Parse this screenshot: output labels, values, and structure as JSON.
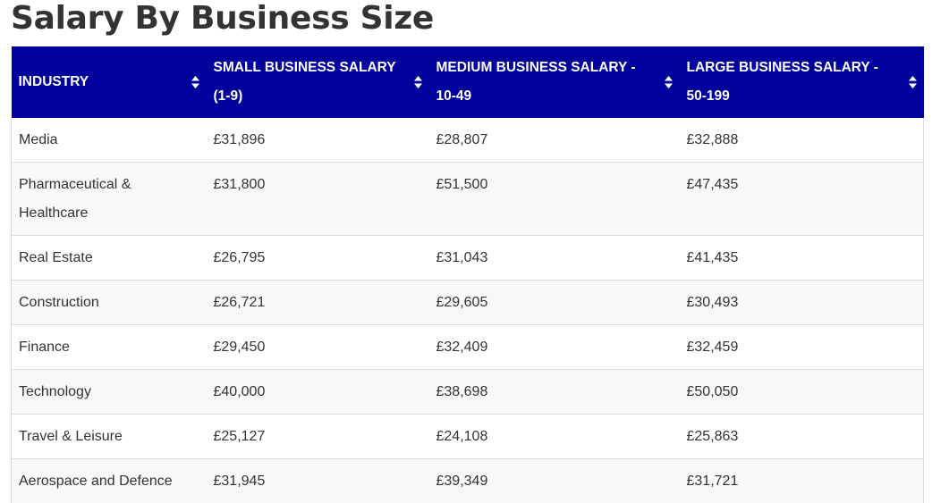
{
  "page": {
    "title": "Salary By Business Size"
  },
  "table": {
    "headers": [
      "INDUSTRY",
      "SMALL BUSINESS SALARY (1-9)",
      "MEDIUM BUSINESS SALARY - 10-49",
      "LARGE BUSINESS SALARY - 50-199"
    ],
    "rows": [
      [
        "Media",
        "£31,896",
        "£28,807",
        "£32,888"
      ],
      [
        "Pharmaceutical & Healthcare",
        "£31,800",
        "£51,500",
        "£47,435"
      ],
      [
        "Real Estate",
        "£26,795",
        "£31,043",
        "£41,435"
      ],
      [
        "Construction",
        "£26,721",
        "£29,605",
        "£30,493"
      ],
      [
        "Finance",
        "£29,450",
        "£32,409",
        "£32,459"
      ],
      [
        "Technology",
        "£40,000",
        "£38,698",
        "£50,050"
      ],
      [
        "Travel & Leisure",
        "£25,127",
        "£24,108",
        "£25,863"
      ],
      [
        "Aerospace and Defence",
        "£31,945",
        "£39,349",
        "£31,721"
      ]
    ]
  },
  "colors": {
    "header_bg": "#00009c",
    "header_text": "#ffffff",
    "body_text": "#333333",
    "stripe": "#f8f8f8",
    "border": "#dddddd"
  },
  "icons": {
    "sort": "sort-icon"
  }
}
